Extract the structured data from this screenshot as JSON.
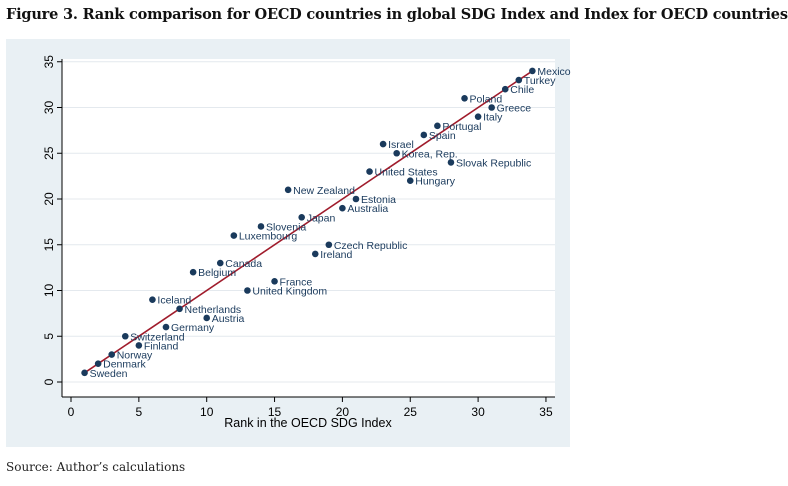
{
  "figure": {
    "title": "Figure 3. Rank comparison for OECD countries in global SDG Index and Index for OECD countries",
    "source": "Source: Author’s calculations"
  },
  "colors": {
    "panel_bg": "#e9f0f4",
    "plot_bg": "#ffffff",
    "marker": "#1a3a5c",
    "fit_line": "#a01c2c",
    "grid": "#e4e9ee",
    "axis": "#000000"
  },
  "chart_data": {
    "type": "scatter",
    "title": "",
    "xlabel": "Rank in the OECD SDG Index",
    "ylabel": "",
    "xlim": [
      0,
      35
    ],
    "ylim": [
      0,
      35
    ],
    "xticks": [
      0,
      5,
      10,
      15,
      20,
      25,
      30,
      35
    ],
    "yticks": [
      0,
      5,
      10,
      15,
      20,
      25,
      30,
      35
    ],
    "grid": true,
    "fit_line": {
      "from": [
        1,
        1
      ],
      "to": [
        34,
        34
      ]
    },
    "points": [
      {
        "label": "Sweden",
        "x": 1,
        "y": 1
      },
      {
        "label": "Denmark",
        "x": 2,
        "y": 2
      },
      {
        "label": "Norway",
        "x": 3,
        "y": 3
      },
      {
        "label": "Finland",
        "x": 5,
        "y": 4
      },
      {
        "label": "Switzerland",
        "x": 4,
        "y": 5
      },
      {
        "label": "Germany",
        "x": 7,
        "y": 6
      },
      {
        "label": "Austria",
        "x": 10,
        "y": 7
      },
      {
        "label": "Netherlands",
        "x": 8,
        "y": 8
      },
      {
        "label": "Iceland",
        "x": 6,
        "y": 9
      },
      {
        "label": "United Kingdom",
        "x": 13,
        "y": 10
      },
      {
        "label": "France",
        "x": 15,
        "y": 11
      },
      {
        "label": "Belgium",
        "x": 9,
        "y": 12
      },
      {
        "label": "Canada",
        "x": 11,
        "y": 13
      },
      {
        "label": "Ireland",
        "x": 18,
        "y": 14
      },
      {
        "label": "Czech Republic",
        "x": 19,
        "y": 15
      },
      {
        "label": "Luxembourg",
        "x": 12,
        "y": 16
      },
      {
        "label": "Slovenia",
        "x": 14,
        "y": 17
      },
      {
        "label": "Japan",
        "x": 17,
        "y": 18
      },
      {
        "label": "Australia",
        "x": 20,
        "y": 19
      },
      {
        "label": "Estonia",
        "x": 21,
        "y": 20
      },
      {
        "label": "New Zealand",
        "x": 16,
        "y": 21
      },
      {
        "label": "Hungary",
        "x": 25,
        "y": 22
      },
      {
        "label": "United States",
        "x": 22,
        "y": 23
      },
      {
        "label": "Slovak Republic",
        "x": 28,
        "y": 24
      },
      {
        "label": "Korea, Rep.",
        "x": 24,
        "y": 25
      },
      {
        "label": "Israel",
        "x": 23,
        "y": 26
      },
      {
        "label": "Spain",
        "x": 26,
        "y": 27
      },
      {
        "label": "Portugal",
        "x": 27,
        "y": 28
      },
      {
        "label": "Italy",
        "x": 30,
        "y": 29
      },
      {
        "label": "Greece",
        "x": 31,
        "y": 30
      },
      {
        "label": "Poland",
        "x": 29,
        "y": 31
      },
      {
        "label": "Chile",
        "x": 32,
        "y": 32
      },
      {
        "label": "Turkey",
        "x": 33,
        "y": 33
      },
      {
        "label": "Mexico",
        "x": 34,
        "y": 34
      }
    ]
  }
}
